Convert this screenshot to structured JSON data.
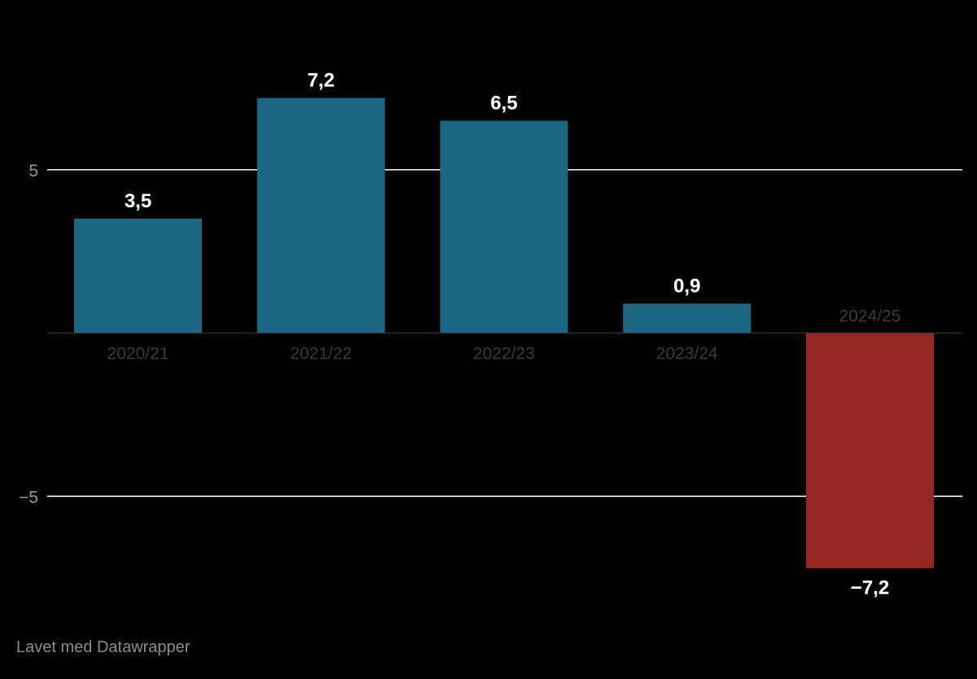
{
  "chart_data": {
    "type": "bar",
    "categories": [
      "2020/21",
      "2021/22",
      "2022/23",
      "2023/24",
      "2024/25"
    ],
    "values": [
      3.5,
      7.2,
      6.5,
      0.9,
      -7.2
    ],
    "value_labels": [
      "3,5",
      "7,2",
      "6,5",
      "0,9",
      "−7,2"
    ],
    "y_ticks": [
      {
        "value": 5,
        "label": "5"
      },
      {
        "value": -5,
        "label": "−5"
      }
    ],
    "ylim": [
      -9.1,
      9.7
    ],
    "grid": true,
    "colors": {
      "positive": "#1c6882",
      "negative": "#982620",
      "gridline": "#ffffff",
      "category_label": "#3a3a3a",
      "tick_label": "#9a9a9a",
      "baseline": "#3a3a3a"
    }
  },
  "footer": {
    "credit": "Lavet med Datawrapper"
  }
}
